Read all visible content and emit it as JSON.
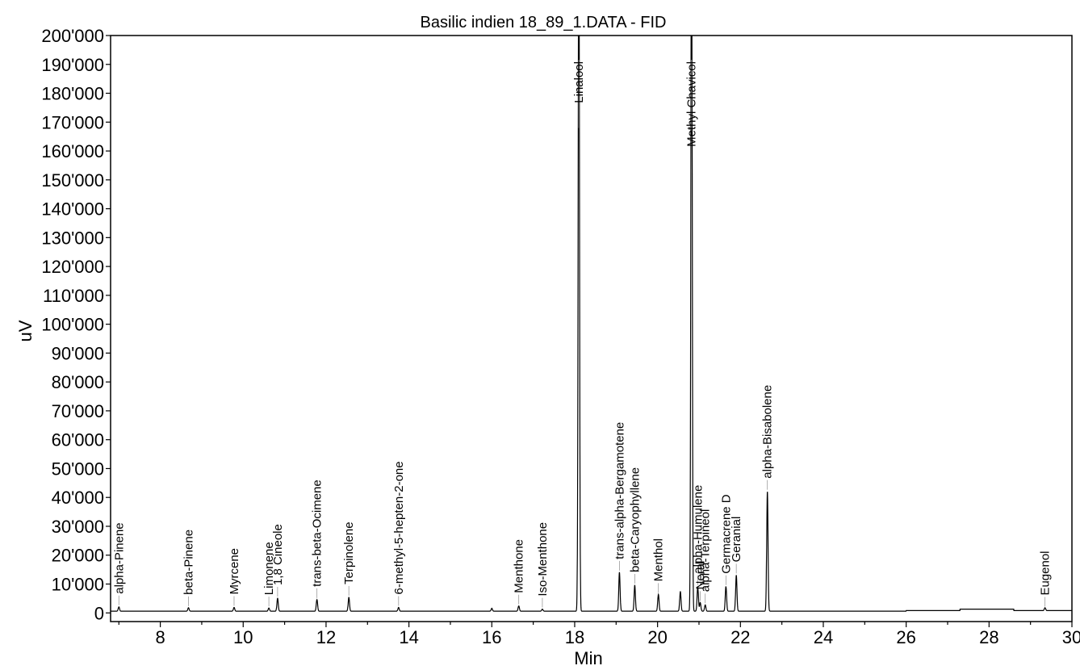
{
  "chart_data": {
    "type": "line",
    "title": "Basilic indien 18_89_1.DATA - FID",
    "xlabel": "Min",
    "ylabel": "uV",
    "xlim": [
      6.8,
      30
    ],
    "ylim": [
      -3000,
      200000
    ],
    "xticks": [
      8,
      10,
      12,
      14,
      16,
      18,
      20,
      22,
      24,
      26,
      28,
      30
    ],
    "yticks": [
      0,
      10000,
      20000,
      30000,
      40000,
      50000,
      60000,
      70000,
      80000,
      90000,
      100000,
      110000,
      120000,
      130000,
      140000,
      150000,
      160000,
      170000,
      180000,
      190000,
      200000
    ],
    "ytick_labels": [
      "0",
      "10'000",
      "20'000",
      "30'000",
      "40'000",
      "50'000",
      "60'000",
      "70'000",
      "80'000",
      "90'000",
      "100'000",
      "110'000",
      "120'000",
      "130'000",
      "140'000",
      "150'000",
      "160'000",
      "170'000",
      "180'000",
      "190'000",
      "200'000"
    ],
    "grid": false,
    "line_color": "#000000",
    "peaks": [
      {
        "name": "alpha-Pinene",
        "rt": 7.0,
        "height": 1500
      },
      {
        "name": "beta-Pinene",
        "rt": 8.68,
        "height": 1200
      },
      {
        "name": "Myrcene",
        "rt": 9.78,
        "height": 1300
      },
      {
        "name": "Limonene",
        "rt": 10.62,
        "height": 1100
      },
      {
        "name": "1,8 Cineole",
        "rt": 10.83,
        "height": 4500
      },
      {
        "name": "trans-beta-Ocimene",
        "rt": 11.78,
        "height": 4000
      },
      {
        "name": "Terpinolene",
        "rt": 12.55,
        "height": 4800
      },
      {
        "name": "6-methyl-5-hepten-2-one",
        "rt": 13.75,
        "height": 1300
      },
      {
        "name": "",
        "rt": 16.0,
        "height": 1000
      },
      {
        "name": "Menthone",
        "rt": 16.65,
        "height": 1800
      },
      {
        "name": "Iso-Menthone",
        "rt": 17.22,
        "height": 700
      },
      {
        "name": "Linalool",
        "rt": 18.1,
        "height": 250000
      },
      {
        "name": "trans-alpha-Bergamotene",
        "rt": 19.08,
        "height": 13500
      },
      {
        "name": "beta-Caryophyllene",
        "rt": 19.45,
        "height": 9000
      },
      {
        "name": "Menthol",
        "rt": 20.02,
        "height": 5800
      },
      {
        "name": "",
        "rt": 20.55,
        "height": 6800
      },
      {
        "name": "Methyl Chavicol",
        "rt": 20.82,
        "height": 250000
      },
      {
        "name": "alpha-Humulene",
        "rt": 20.97,
        "height": 8500
      },
      {
        "name": "Neral",
        "rt": 21.03,
        "height": 3000
      },
      {
        "name": "alpha-Terpineol",
        "rt": 21.15,
        "height": 2200
      },
      {
        "name": "Germacrene D",
        "rt": 21.65,
        "height": 8500
      },
      {
        "name": "Geranial",
        "rt": 21.9,
        "height": 12500
      },
      {
        "name": "alpha-Bisabolene",
        "rt": 22.65,
        "height": 41500
      },
      {
        "name": "Eugenol",
        "rt": 29.35,
        "height": 1000
      }
    ]
  }
}
